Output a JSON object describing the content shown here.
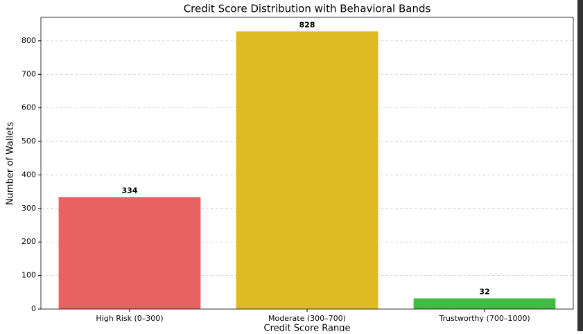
{
  "chart_data": {
    "type": "bar",
    "title": "Credit Score Distribution with Behavioral Bands",
    "xlabel": "Credit Score Range",
    "ylabel": "Number of Wallets",
    "categories": [
      "High Risk (0–300)",
      "Moderate (300–700)",
      "Trustworthy (700–1000)"
    ],
    "values": [
      334,
      828,
      32
    ],
    "colors": [
      "#e86262",
      "#dfbb22",
      "#44b944"
    ],
    "ylim": [
      0,
      870
    ],
    "yticks": [
      0,
      100,
      200,
      300,
      400,
      500,
      600,
      700,
      800
    ],
    "grid": true
  }
}
